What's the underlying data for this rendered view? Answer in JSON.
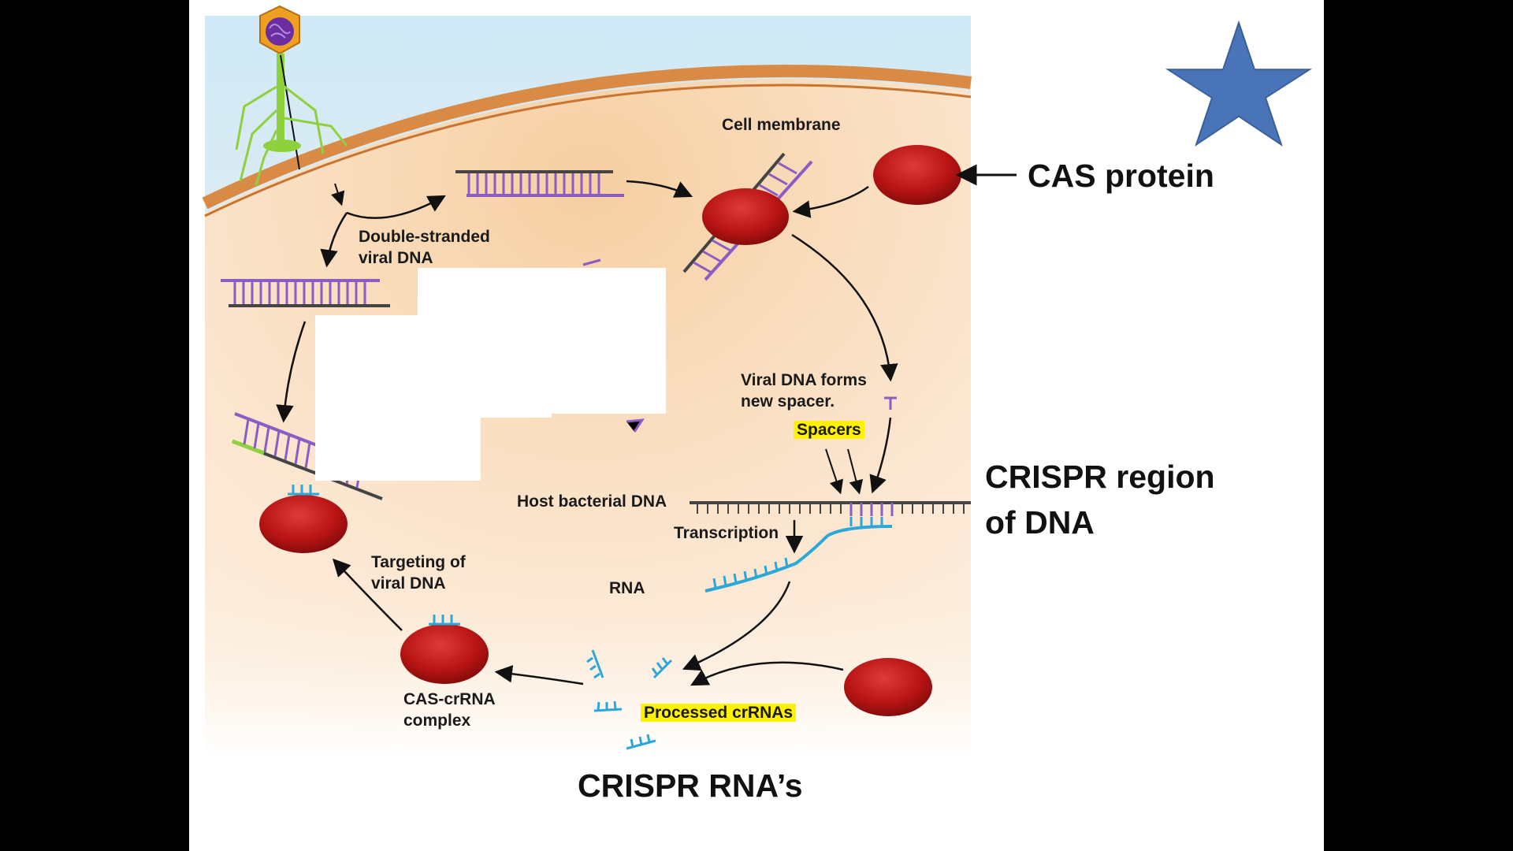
{
  "diagram": {
    "labels": {
      "cell_membrane": "Cell membrane",
      "double_stranded_viral_dna": "Double-stranded\nviral DNA",
      "viral_dna_forms_new_spacer": "Viral DNA forms\nnew spacer.",
      "spacers": "Spacers",
      "host_bacterial_dna": "Host bacterial DNA",
      "transcription": "Transcription",
      "rna": "RNA",
      "targeting_of_viral_dna": "Targeting of\nviral DNA",
      "cas_crrna_complex": "CAS-crRNA\ncomplex",
      "processed_crrnas": "Processed crRNAs"
    },
    "annotations": {
      "cas_protein": "CAS protein",
      "crispr_region": "CRISPR region\nof DNA",
      "crispr_rnas": "CRISPR RNA’s"
    },
    "colors": {
      "cell_outer": "#f3c89a",
      "cell_inner": "#fbe6cf",
      "membrane": "#d98a45",
      "cas_protein": "#b81414",
      "viral_dna_strand": "#8a5cc4",
      "dna_dark": "#444444",
      "rna": "#2ba7d8",
      "highlight": "#fff200",
      "star": "#4a74b8",
      "phage_head": "#f0a020",
      "phage_tail": "#8fd13c"
    },
    "icons": [
      "bacteriophage-icon",
      "star-icon"
    ]
  }
}
